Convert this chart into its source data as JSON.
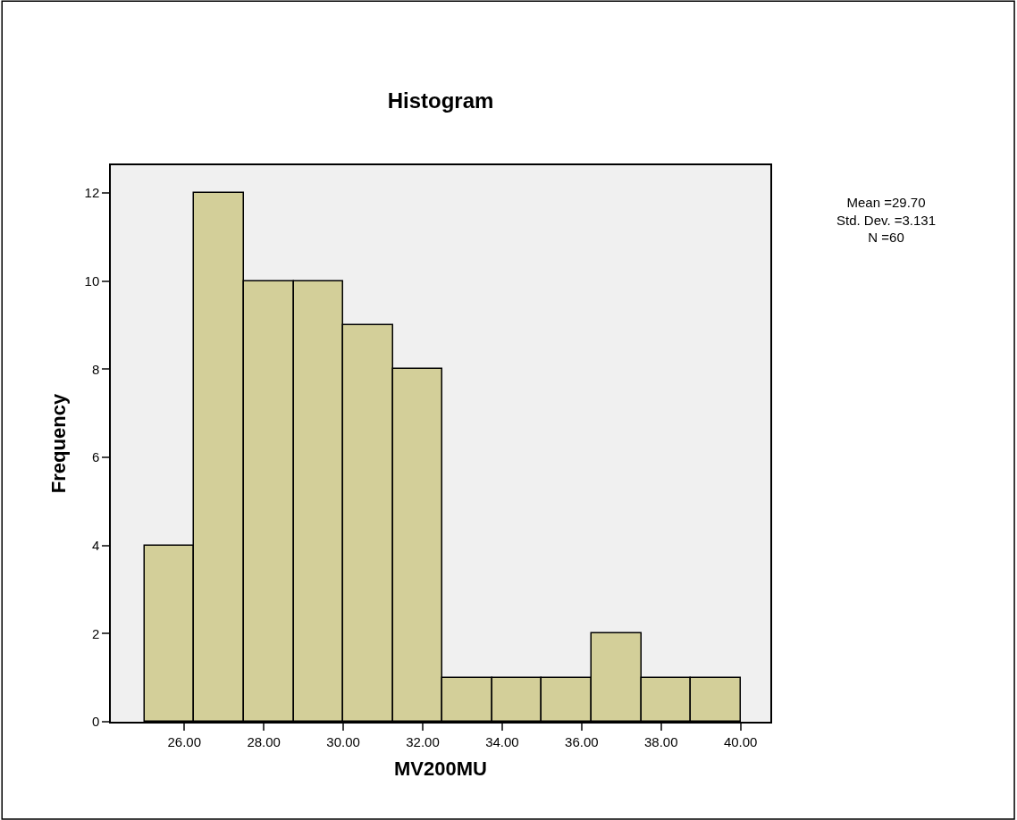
{
  "chart_data": {
    "type": "histogram",
    "title": "Histogram",
    "xlabel": "MV200MU",
    "ylabel": "Frequency",
    "bins": [
      25,
      26.25,
      27.5,
      28.75,
      30,
      31.25,
      32.5,
      33.75,
      35,
      36.25,
      37.5,
      38.75,
      40
    ],
    "values": [
      4,
      12,
      10,
      10,
      9,
      8,
      1,
      1,
      1,
      2,
      1,
      1
    ],
    "color": "#d3cf99",
    "xlim": [
      24.15,
      40.75
    ],
    "xticks": [
      {
        "value": 26,
        "label": "26.00"
      },
      {
        "value": 28,
        "label": "28.00"
      },
      {
        "value": 30,
        "label": "30.00"
      },
      {
        "value": 32,
        "label": "32.00"
      },
      {
        "value": 34,
        "label": "34.00"
      },
      {
        "value": 36,
        "label": "36.00"
      },
      {
        "value": 38,
        "label": "38.00"
      },
      {
        "value": 40,
        "label": "40.00"
      }
    ],
    "ylim": [
      0,
      12.63
    ],
    "yticks": [
      0,
      2,
      4,
      6,
      8,
      10,
      12
    ],
    "annotations": [
      "Mean =29.70\nStd. Dev. =3.131\nN =60"
    ],
    "grid": false
  }
}
